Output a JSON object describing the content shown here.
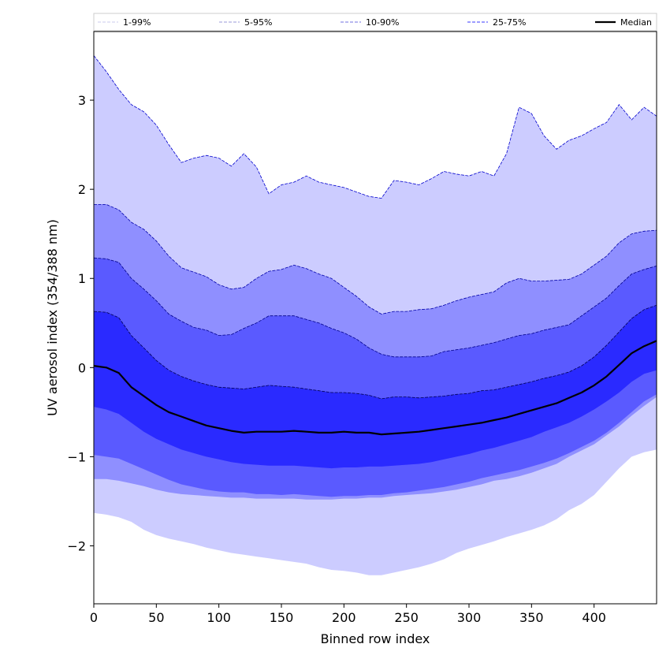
{
  "chart_data": {
    "type": "area",
    "xlabel": "Binned row index",
    "ylabel": "UV aerosol index (354/388 nm)",
    "xlim": [
      0,
      450
    ],
    "ylim": [
      -2.65,
      3.77
    ],
    "x_ticks": [
      0,
      50,
      100,
      150,
      200,
      250,
      300,
      350,
      400
    ],
    "y_ticks": [
      -2,
      -1,
      0,
      1,
      2,
      3
    ],
    "y_tick_labels": [
      "−2",
      "−1",
      "0",
      "1",
      "2",
      "3"
    ],
    "grid": false,
    "legend_position": "top",
    "x": [
      0,
      10,
      20,
      30,
      40,
      50,
      60,
      70,
      80,
      90,
      100,
      110,
      120,
      130,
      140,
      150,
      160,
      170,
      180,
      190,
      200,
      210,
      220,
      230,
      240,
      250,
      260,
      270,
      280,
      290,
      300,
      310,
      320,
      330,
      340,
      350,
      360,
      370,
      380,
      390,
      400,
      410,
      420,
      430,
      440,
      450
    ],
    "series": [
      {
        "name": "1-99%",
        "color": "#ccccff",
        "edge_color": "#0000cc",
        "lower": [
          -1.63,
          -1.65,
          -1.68,
          -1.73,
          -1.82,
          -1.88,
          -1.92,
          -1.95,
          -1.98,
          -2.02,
          -2.05,
          -2.08,
          -2.1,
          -2.12,
          -2.14,
          -2.16,
          -2.18,
          -2.2,
          -2.24,
          -2.27,
          -2.28,
          -2.3,
          -2.33,
          -2.33,
          -2.3,
          -2.27,
          -2.24,
          -2.2,
          -2.15,
          -2.08,
          -2.03,
          -1.99,
          -1.95,
          -1.9,
          -1.86,
          -1.82,
          -1.77,
          -1.7,
          -1.6,
          -1.53,
          -1.43,
          -1.28,
          -1.13,
          -1.0,
          -0.95,
          -0.92
        ],
        "upper": [
          3.5,
          3.32,
          3.12,
          2.95,
          2.87,
          2.72,
          2.5,
          2.3,
          2.35,
          2.38,
          2.35,
          2.26,
          2.4,
          2.25,
          1.95,
          2.05,
          2.08,
          2.15,
          2.08,
          2.05,
          2.02,
          1.97,
          1.92,
          1.9,
          2.1,
          2.08,
          2.05,
          2.12,
          2.2,
          2.17,
          2.15,
          2.2,
          2.15,
          2.4,
          2.92,
          2.85,
          2.6,
          2.45,
          2.55,
          2.6,
          2.68,
          2.75,
          2.95,
          2.78,
          2.92,
          2.82
        ]
      },
      {
        "name": "5-95%",
        "color": "#8f8fff",
        "edge_color": "#0000aa",
        "lower": [
          -1.25,
          -1.25,
          -1.27,
          -1.3,
          -1.33,
          -1.37,
          -1.4,
          -1.42,
          -1.43,
          -1.44,
          -1.45,
          -1.46,
          -1.46,
          -1.47,
          -1.47,
          -1.47,
          -1.47,
          -1.48,
          -1.48,
          -1.48,
          -1.47,
          -1.47,
          -1.46,
          -1.46,
          -1.44,
          -1.43,
          -1.42,
          -1.41,
          -1.39,
          -1.37,
          -1.34,
          -1.31,
          -1.27,
          -1.25,
          -1.22,
          -1.18,
          -1.13,
          -1.08,
          -1.0,
          -0.93,
          -0.86,
          -0.76,
          -0.66,
          -0.54,
          -0.43,
          -0.33
        ],
        "upper": [
          1.83,
          1.83,
          1.77,
          1.63,
          1.55,
          1.42,
          1.25,
          1.12,
          1.07,
          1.02,
          0.93,
          0.88,
          0.9,
          1.0,
          1.08,
          1.1,
          1.15,
          1.11,
          1.05,
          1.0,
          0.9,
          0.8,
          0.68,
          0.6,
          0.63,
          0.63,
          0.65,
          0.66,
          0.7,
          0.75,
          0.79,
          0.82,
          0.85,
          0.95,
          1.0,
          0.97,
          0.97,
          0.98,
          0.99,
          1.05,
          1.15,
          1.25,
          1.4,
          1.5,
          1.53,
          1.54
        ]
      },
      {
        "name": "10-90%",
        "color": "#5a5aff",
        "edge_color": "#00008b",
        "lower": [
          -0.98,
          -1.0,
          -1.02,
          -1.08,
          -1.14,
          -1.2,
          -1.26,
          -1.31,
          -1.34,
          -1.37,
          -1.39,
          -1.4,
          -1.4,
          -1.42,
          -1.42,
          -1.43,
          -1.42,
          -1.43,
          -1.44,
          -1.45,
          -1.44,
          -1.44,
          -1.43,
          -1.43,
          -1.41,
          -1.4,
          -1.38,
          -1.36,
          -1.34,
          -1.31,
          -1.28,
          -1.24,
          -1.21,
          -1.18,
          -1.15,
          -1.11,
          -1.07,
          -1.02,
          -0.96,
          -0.89,
          -0.82,
          -0.73,
          -0.62,
          -0.5,
          -0.38,
          -0.3
        ],
        "upper": [
          1.23,
          1.22,
          1.18,
          1.0,
          0.88,
          0.75,
          0.6,
          0.52,
          0.45,
          0.42,
          0.36,
          0.37,
          0.44,
          0.5,
          0.58,
          0.58,
          0.58,
          0.54,
          0.5,
          0.44,
          0.39,
          0.32,
          0.22,
          0.15,
          0.12,
          0.12,
          0.12,
          0.13,
          0.18,
          0.2,
          0.22,
          0.25,
          0.28,
          0.32,
          0.36,
          0.38,
          0.42,
          0.45,
          0.48,
          0.58,
          0.68,
          0.78,
          0.92,
          1.05,
          1.1,
          1.14
        ]
      },
      {
        "name": "25-75%",
        "color": "#2a2aff",
        "edge_color": "#000055",
        "lower": [
          -0.44,
          -0.47,
          -0.52,
          -0.62,
          -0.72,
          -0.8,
          -0.86,
          -0.92,
          -0.96,
          -1.0,
          -1.03,
          -1.06,
          -1.08,
          -1.09,
          -1.1,
          -1.1,
          -1.1,
          -1.11,
          -1.12,
          -1.13,
          -1.12,
          -1.12,
          -1.11,
          -1.11,
          -1.1,
          -1.09,
          -1.08,
          -1.06,
          -1.03,
          -1.0,
          -0.97,
          -0.93,
          -0.9,
          -0.86,
          -0.82,
          -0.78,
          -0.72,
          -0.67,
          -0.62,
          -0.55,
          -0.47,
          -0.38,
          -0.28,
          -0.16,
          -0.07,
          -0.03
        ],
        "upper": [
          0.63,
          0.62,
          0.56,
          0.36,
          0.22,
          0.08,
          -0.03,
          -0.1,
          -0.15,
          -0.19,
          -0.22,
          -0.23,
          -0.24,
          -0.22,
          -0.2,
          -0.21,
          -0.22,
          -0.24,
          -0.26,
          -0.28,
          -0.28,
          -0.29,
          -0.31,
          -0.35,
          -0.33,
          -0.33,
          -0.34,
          -0.33,
          -0.32,
          -0.3,
          -0.29,
          -0.26,
          -0.25,
          -0.22,
          -0.19,
          -0.16,
          -0.12,
          -0.09,
          -0.05,
          0.02,
          0.12,
          0.25,
          0.4,
          0.55,
          0.65,
          0.7
        ]
      }
    ],
    "median": {
      "name": "Median",
      "color": "#000000",
      "values": [
        0.02,
        0.0,
        -0.06,
        -0.22,
        -0.32,
        -0.42,
        -0.5,
        -0.55,
        -0.6,
        -0.65,
        -0.68,
        -0.71,
        -0.73,
        -0.72,
        -0.72,
        -0.72,
        -0.71,
        -0.72,
        -0.73,
        -0.73,
        -0.72,
        -0.73,
        -0.73,
        -0.75,
        -0.74,
        -0.73,
        -0.72,
        -0.7,
        -0.68,
        -0.66,
        -0.64,
        -0.62,
        -0.59,
        -0.56,
        -0.52,
        -0.48,
        -0.44,
        -0.4,
        -0.34,
        -0.28,
        -0.2,
        -0.1,
        0.03,
        0.16,
        0.24,
        0.3
      ]
    }
  }
}
